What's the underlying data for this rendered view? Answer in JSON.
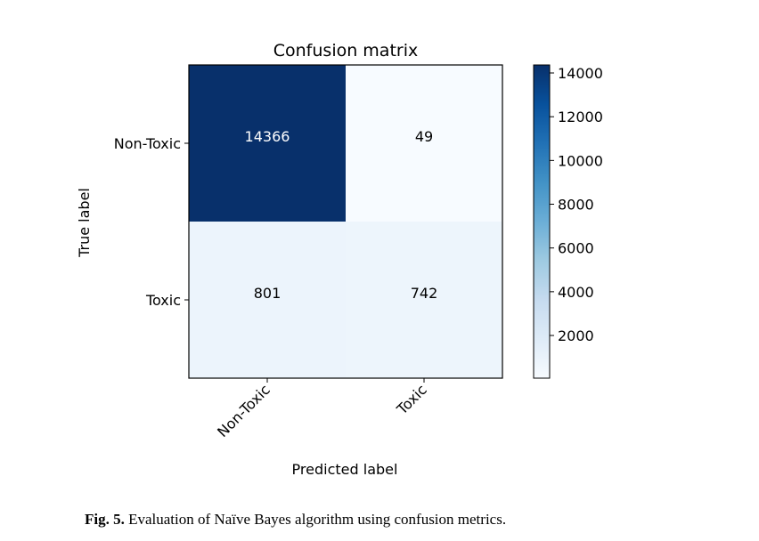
{
  "chart_data": {
    "type": "heatmap",
    "title": "Confusion matrix",
    "xlabel": "Predicted label",
    "ylabel": "True label",
    "x_categories": [
      "Non-Toxic",
      "Toxic"
    ],
    "y_categories": [
      "Non-Toxic",
      "Toxic"
    ],
    "values": [
      [
        14366,
        49
      ],
      [
        801,
        742
      ]
    ],
    "colormap": "Blues",
    "colorbar": {
      "range": [
        49,
        14366
      ],
      "ticks": [
        2000,
        4000,
        6000,
        8000,
        10000,
        12000,
        14000
      ]
    },
    "grid": false
  },
  "caption": {
    "label": "Fig. 5.",
    "text": "Evaluation of Naïve Bayes algorithm using confusion metrics."
  }
}
